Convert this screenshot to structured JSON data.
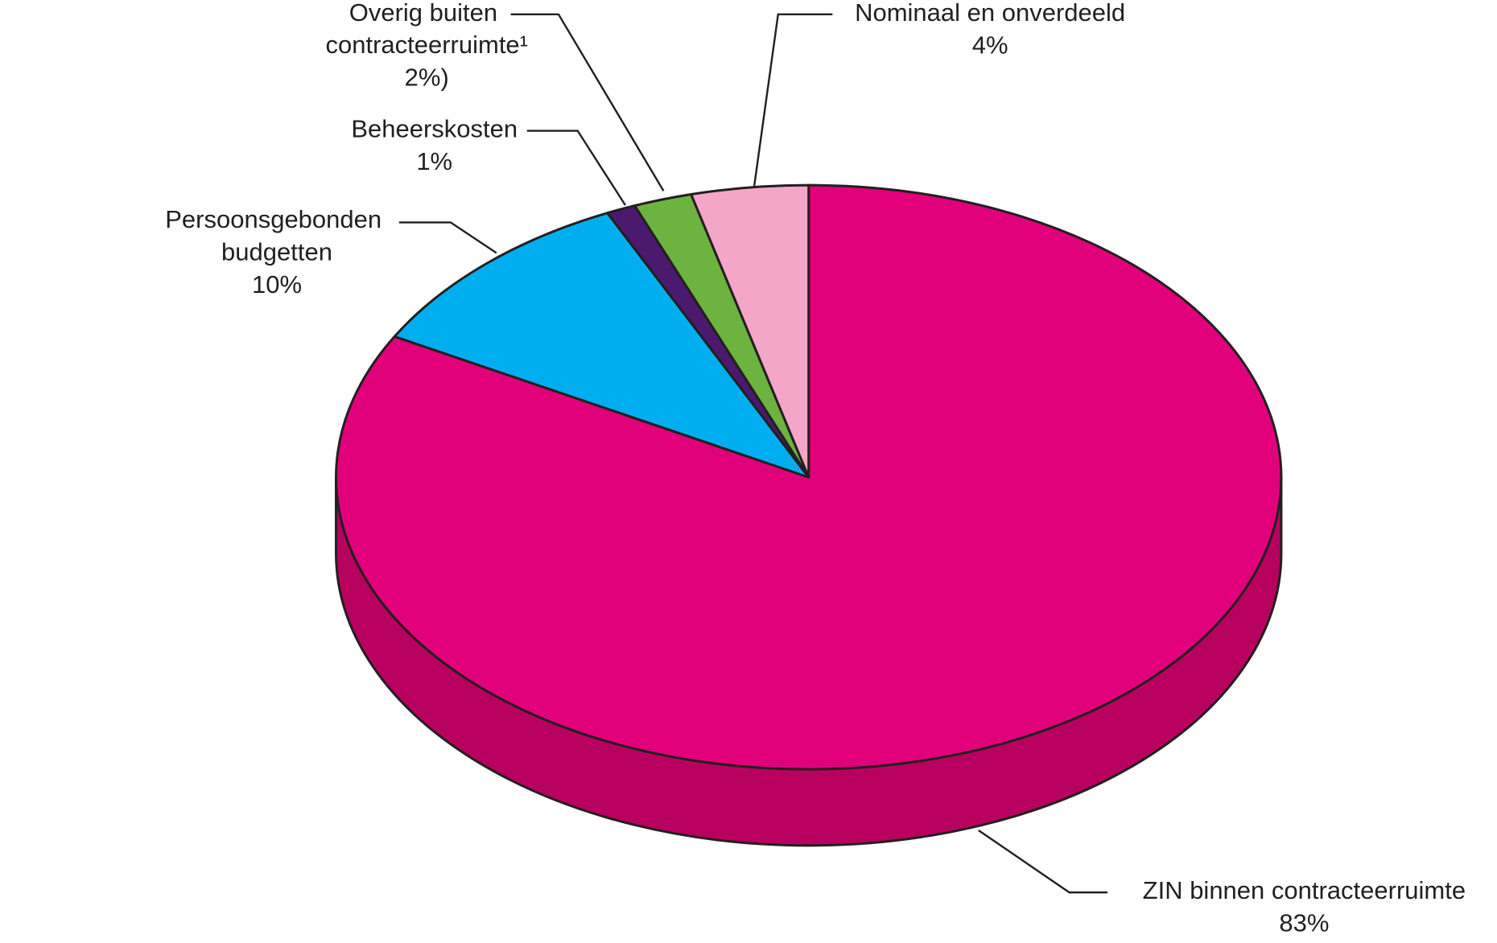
{
  "chart_data": {
    "type": "pie3d",
    "categories": [
      "ZIN binnen contracteerruimte",
      "Persoonsgebonden budgetten",
      "Beheerskosten",
      "Overig buiten contracteerruimte¹",
      "Nominaal en onverdeeld"
    ],
    "values": [
      83,
      10,
      1,
      2,
      4
    ],
    "value_labels": [
      "83%",
      "10%",
      "1%",
      "2%)",
      "4%"
    ],
    "colors": [
      "#e2007a",
      "#00aeef",
      "#4b1a6e",
      "#6db33f",
      "#f4a6c8"
    ],
    "side_colors": [
      "#b8005f",
      "#0088bb",
      "#35104f",
      "#4f8a2a",
      "#d57fa6"
    ]
  }
}
